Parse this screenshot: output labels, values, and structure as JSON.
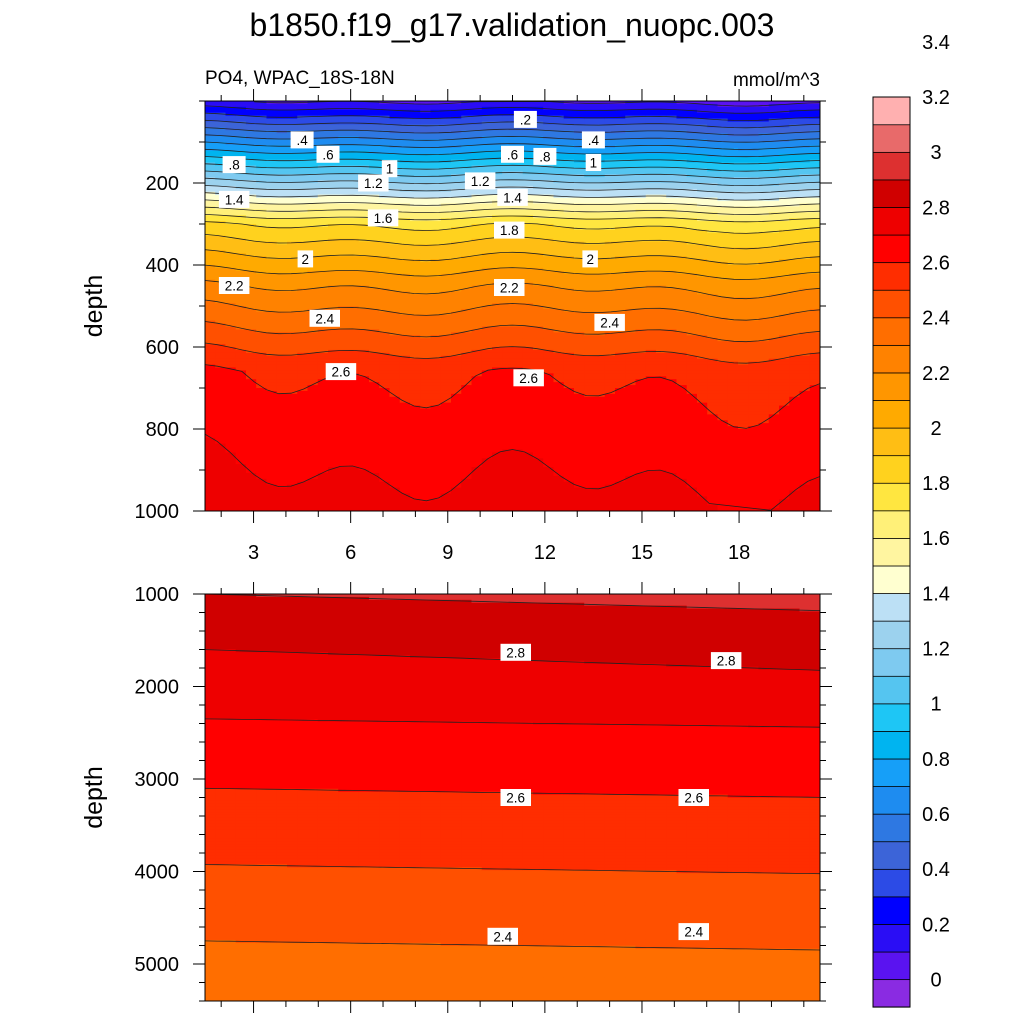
{
  "figure": {
    "title": "b1850.f19_g17.validation_nuopc.003",
    "left_label": "PO4, WPAC_18S-18N",
    "right_label": "mmol/m^3"
  },
  "colorbar": {
    "colors": [
      "#8a2be2",
      "#5a13f0",
      "#2a0df5",
      "#0000ff",
      "#2c4be6",
      "#3c64d8",
      "#2e78e2",
      "#1e8cf0",
      "#169ff8",
      "#00b4f0",
      "#1ec6f5",
      "#55c5f0",
      "#7ecaf0",
      "#9cd2ee",
      "#bce0f5",
      "#ffffd0",
      "#fff5a0",
      "#fff078",
      "#ffe640",
      "#ffd21e",
      "#ffbe14",
      "#ffaa00",
      "#ff9600",
      "#ff8200",
      "#ff6e00",
      "#ff5000",
      "#ff2d00",
      "#ff0000",
      "#ee0000",
      "#d00000",
      "#dd3030",
      "#e86a6a",
      "#ffb0b0"
    ],
    "tick_labels": [
      "0",
      "0.2",
      "0.4",
      "0.6",
      "0.8",
      "1",
      "1.2",
      "1.4",
      "1.6",
      "1.8",
      "2",
      "2.2",
      "2.4",
      "2.6",
      "2.8",
      "3",
      "3.2",
      "3.4"
    ]
  },
  "chart_data": [
    {
      "type": "heatmap",
      "subtype": "filled-contour",
      "title": "",
      "xlabel": "",
      "ylabel": "depth",
      "x_ticks": [
        3,
        6,
        9,
        12,
        15,
        18
      ],
      "x_range": [
        1.5,
        20.5
      ],
      "y_ticks": [
        200,
        400,
        600,
        800,
        1000
      ],
      "ylim": [
        1000,
        0
      ],
      "contour_interval": 0.1,
      "levels": [
        0.2,
        0.4,
        0.6,
        0.8,
        1.0,
        1.2,
        1.4,
        1.6,
        1.8,
        2.0,
        2.2,
        2.4,
        2.6
      ],
      "contour_labels": [
        {
          "text": ".2",
          "x": 11.4,
          "y": 45
        },
        {
          "text": ".4",
          "x": 4.5,
          "y": 95
        },
        {
          "text": ".4",
          "x": 13.5,
          "y": 95
        },
        {
          "text": ".6",
          "x": 5.3,
          "y": 130
        },
        {
          "text": ".6",
          "x": 11.0,
          "y": 130
        },
        {
          "text": ".8",
          "x": 2.4,
          "y": 155
        },
        {
          "text": ".8",
          "x": 12.0,
          "y": 135
        },
        {
          "text": "1",
          "x": 7.2,
          "y": 165
        },
        {
          "text": "1",
          "x": 13.5,
          "y": 150
        },
        {
          "text": "1.2",
          "x": 6.7,
          "y": 200
        },
        {
          "text": "1.2",
          "x": 10.0,
          "y": 195
        },
        {
          "text": "1.4",
          "x": 2.4,
          "y": 240
        },
        {
          "text": "1.4",
          "x": 11.0,
          "y": 235
        },
        {
          "text": "1.6",
          "x": 7.0,
          "y": 285
        },
        {
          "text": "1.8",
          "x": 10.9,
          "y": 315
        },
        {
          "text": "2",
          "x": 4.6,
          "y": 385
        },
        {
          "text": "2",
          "x": 13.4,
          "y": 385
        },
        {
          "text": "2.2",
          "x": 2.4,
          "y": 450
        },
        {
          "text": "2.2",
          "x": 10.9,
          "y": 455
        },
        {
          "text": "2.4",
          "x": 5.2,
          "y": 530
        },
        {
          "text": "2.4",
          "x": 14.0,
          "y": 540
        },
        {
          "text": "2.6",
          "x": 5.7,
          "y": 660
        },
        {
          "text": "2.6",
          "x": 11.5,
          "y": 675
        }
      ]
    },
    {
      "type": "heatmap",
      "subtype": "filled-contour",
      "title": "",
      "xlabel": "",
      "ylabel": "depth",
      "x_ticks": [
        3,
        6,
        9,
        12,
        15,
        18
      ],
      "x_range": [
        1.5,
        20.5
      ],
      "y_ticks": [
        1000,
        2000,
        3000,
        4000,
        5000
      ],
      "ylim": [
        5400,
        1000
      ],
      "levels": [
        2.4,
        2.5,
        2.6,
        2.7,
        2.8
      ],
      "contour_labels": [
        {
          "text": "2.8",
          "x": 11.1,
          "y": 1630
        },
        {
          "text": "2.8",
          "x": 17.6,
          "y": 1720
        },
        {
          "text": "2.6",
          "x": 11.1,
          "y": 3200
        },
        {
          "text": "2.6",
          "x": 16.6,
          "y": 3200
        },
        {
          "text": "2.4",
          "x": 10.7,
          "y": 4700
        },
        {
          "text": "2.4",
          "x": 16.6,
          "y": 4650
        }
      ]
    }
  ]
}
